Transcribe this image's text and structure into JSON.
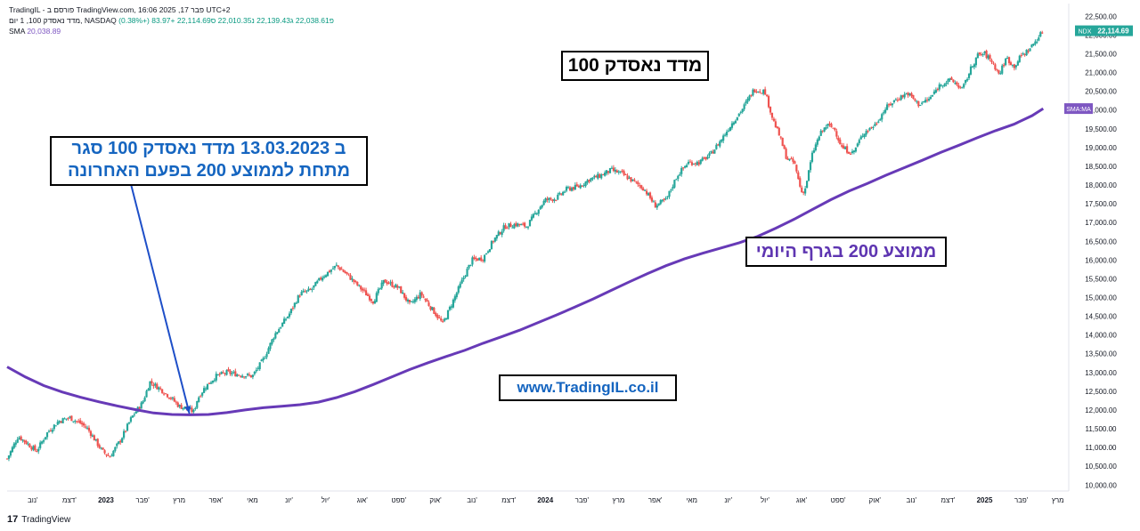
{
  "header": {
    "line1": "TradingIL - פורסם ב TradingView.com, פבר 17, 2025 16:06 UTC+2",
    "symbol": "מדד נאסדק 100, 1 יום, NASDAQ",
    "ohlc": "פ22,038.61  ג22,139.43  נ22,010.35  ס22,114.69  +83.97 (+0.38%)",
    "sma_label": "SMA",
    "sma_value": "20,038.89"
  },
  "annotations": {
    "title": "מדד נאסדק 100",
    "event_line1": "ב 13.03.2023 מדד נאסדק 100 סגר",
    "event_line2": "מתחת לממוצע 200 בפעם האחרונה",
    "website": "www.TradingIL.co.il",
    "ma_label": "ממוצע 200 בגרף היומי"
  },
  "footer": {
    "brand": "TradingView",
    "logo": "17"
  },
  "colors": {
    "up": "#26a69a",
    "down": "#ef5350",
    "sma": "#673ab7",
    "arrow": "#1e4fc8",
    "ndx_tag": "#26a69a",
    "sma_tag": "#7e57c2",
    "event_text": "#1565c0",
    "website_text": "#1565c0",
    "ma_text": "#5e35b1"
  },
  "chart_data": {
    "type": "line",
    "title": "מדד נאסדק 100",
    "y_axis_labels": [
      "22,500.00",
      "22,000.00",
      "21,500.00",
      "21,000.00",
      "20,500.00",
      "20,000.00",
      "19,500.00",
      "19,000.00",
      "18,500.00",
      "18,000.00",
      "17,500.00",
      "17,000.00",
      "16,500.00",
      "16,000.00",
      "15,500.00",
      "15,000.00",
      "14,500.00",
      "14,000.00",
      "13,500.00",
      "13,000.00",
      "12,500.00",
      "12,000.00",
      "11,500.00",
      "11,000.00",
      "10,500.00",
      "10,000.00"
    ],
    "y_axis_values": [
      22500,
      22000,
      21500,
      21000,
      20500,
      20000,
      19500,
      19000,
      18500,
      18000,
      17500,
      17000,
      16500,
      16000,
      15500,
      15000,
      14500,
      14000,
      13500,
      13000,
      12500,
      12000,
      11500,
      11000,
      10500,
      10000
    ],
    "ylim": [
      9840,
      22840
    ],
    "x_axis_labels": [
      "נוב'",
      "דצמ'",
      "2023",
      "פבר'",
      "מרץ",
      "אפר'",
      "מאי",
      "יונ'",
      "יול'",
      "אוג'",
      "ספט'",
      "אוק'",
      "נוב'",
      "דצמ'",
      "2024",
      "פבר'",
      "מרץ",
      "אפר'",
      "מאי",
      "יונ'",
      "יול'",
      "אוג'",
      "ספט'",
      "אוק'",
      "נוב'",
      "דצמ'",
      "2025",
      "פבר'",
      "מרץ"
    ],
    "x_axis_months": [
      0,
      1,
      2,
      3,
      4,
      5,
      6,
      7,
      8,
      9,
      10,
      11,
      12,
      13,
      14,
      15,
      16,
      17,
      18,
      19,
      20,
      21,
      22,
      23,
      24,
      25,
      26,
      27,
      28
    ],
    "xlim": [
      -0.7,
      28.25
    ],
    "price_tag": {
      "label": "NDX",
      "value": "22,114.69",
      "y": 22114.69
    },
    "sma_tag": {
      "label": "SMA:MA",
      "y": 20038.89
    },
    "series": [
      {
        "name": "NDX",
        "x": [
          -0.7,
          -0.4,
          -0.2,
          0.1,
          0.4,
          0.7,
          1.0,
          1.3,
          1.5,
          1.7,
          1.9,
          2.1,
          2.4,
          2.7,
          3.0,
          3.2,
          3.5,
          3.8,
          4.0,
          4.2,
          4.4,
          4.5,
          4.7,
          5.0,
          5.3,
          5.6,
          6.0,
          6.3,
          6.6,
          7.0,
          7.3,
          7.6,
          7.9,
          8.3,
          8.6,
          9.0,
          9.3,
          9.6,
          10.0,
          10.3,
          10.6,
          10.9,
          11.2,
          11.5,
          11.8,
          12.0,
          12.3,
          12.6,
          12.9,
          13.2,
          13.5,
          13.8,
          14.0,
          14.3,
          14.6,
          14.9,
          15.2,
          15.5,
          15.8,
          16.1,
          16.4,
          16.7,
          17.0,
          17.3,
          17.6,
          17.9,
          18.2,
          18.5,
          18.8,
          19.1,
          19.4,
          19.7,
          20.0,
          20.2,
          20.4,
          20.6,
          20.8,
          21.0,
          21.1,
          21.3,
          21.5,
          21.7,
          21.9,
          22.1,
          22.4,
          22.7,
          23.0,
          23.3,
          23.6,
          23.9,
          24.2,
          24.5,
          24.8,
          25.1,
          25.4,
          25.6,
          25.8,
          26.0,
          26.2,
          26.4,
          26.6,
          26.8,
          27.0,
          27.2,
          27.4,
          27.6
        ],
        "values": [
          10700,
          11300,
          11150,
          10900,
          11400,
          11700,
          11800,
          11650,
          11500,
          11200,
          10900,
          10750,
          11200,
          11800,
          12200,
          12750,
          12550,
          12300,
          12100,
          12050,
          11950,
          12300,
          12600,
          12900,
          13000,
          12950,
          12900,
          13350,
          14000,
          14550,
          15100,
          15200,
          15550,
          15850,
          15600,
          15200,
          14900,
          15450,
          15250,
          14800,
          15100,
          14700,
          14300,
          14950,
          15600,
          16000,
          16050,
          16550,
          16900,
          16950,
          16900,
          17350,
          17600,
          17650,
          17900,
          17950,
          18150,
          18250,
          18400,
          18300,
          18100,
          17900,
          17450,
          17600,
          18250,
          18600,
          18600,
          18800,
          19200,
          19650,
          20050,
          20550,
          20500,
          19800,
          19300,
          18700,
          18600,
          17800,
          17900,
          18850,
          19350,
          19600,
          19500,
          19000,
          18850,
          19400,
          19600,
          20050,
          20300,
          20450,
          20150,
          20300,
          20700,
          20800,
          20550,
          21050,
          21450,
          21500,
          21300,
          20950,
          21400,
          21150,
          21450,
          21600,
          21850,
          22114
        ]
      },
      {
        "name": "SMA",
        "x": [
          -0.7,
          -0.2,
          0.3,
          0.8,
          1.3,
          1.8,
          2.3,
          2.8,
          3.3,
          3.8,
          4.3,
          4.8,
          5.3,
          5.8,
          6.3,
          6.8,
          7.3,
          7.8,
          8.3,
          8.8,
          9.3,
          9.8,
          10.3,
          10.8,
          11.3,
          11.8,
          12.3,
          12.8,
          13.3,
          13.8,
          14.3,
          14.8,
          15.3,
          15.8,
          16.3,
          16.8,
          17.3,
          17.8,
          18.3,
          18.8,
          19.3,
          19.8,
          20.3,
          20.8,
          21.3,
          21.8,
          22.3,
          22.8,
          23.3,
          23.8,
          24.3,
          24.8,
          25.3,
          25.8,
          26.3,
          26.8,
          27.3,
          27.6
        ],
        "values": [
          13150,
          12880,
          12650,
          12480,
          12340,
          12220,
          12110,
          12010,
          11920,
          11880,
          11870,
          11880,
          11930,
          12000,
          12060,
          12100,
          12140,
          12210,
          12330,
          12490,
          12680,
          12880,
          13080,
          13260,
          13430,
          13590,
          13780,
          13950,
          14130,
          14330,
          14530,
          14740,
          14960,
          15190,
          15420,
          15640,
          15850,
          16030,
          16180,
          16320,
          16460,
          16630,
          16850,
          17090,
          17350,
          17610,
          17840,
          18040,
          18260,
          18460,
          18660,
          18870,
          19060,
          19260,
          19450,
          19620,
          19850,
          20039
        ]
      }
    ],
    "grid": false,
    "legend": "top-left"
  }
}
